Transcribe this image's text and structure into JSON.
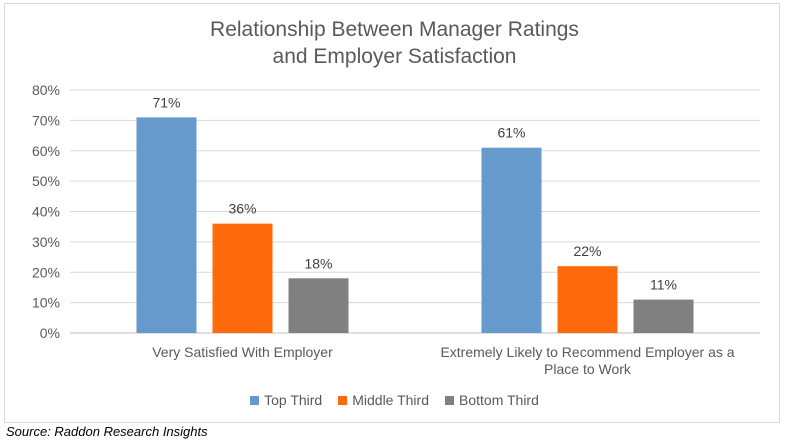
{
  "chart_data": {
    "type": "bar",
    "title_line1": "Relationship Between Manager Ratings",
    "title_line2": "and Employer Satisfaction",
    "categories": [
      "Very Satisfied With Employer",
      "Extremely Likely to Recommend Employer as a Place to Work"
    ],
    "category_lines": [
      [
        "Very Satisfied With Employer"
      ],
      [
        "Extremely Likely to Recommend Employer as a",
        "Place to Work"
      ]
    ],
    "series": [
      {
        "name": "Top Third",
        "color": "#6699cc",
        "values": [
          71,
          61
        ]
      },
      {
        "name": "Middle Third",
        "color": "#ff6a0d",
        "values": [
          36,
          22
        ]
      },
      {
        "name": "Bottom Third",
        "color": "#808080",
        "values": [
          18,
          11
        ]
      }
    ],
    "value_suffix": "%",
    "ylim": [
      0,
      80
    ],
    "yticks": [
      "0%",
      "10%",
      "20%",
      "30%",
      "40%",
      "50%",
      "60%",
      "70%",
      "80%"
    ],
    "legend_position": "bottom"
  },
  "source": "Source: Raddon Research Insights"
}
